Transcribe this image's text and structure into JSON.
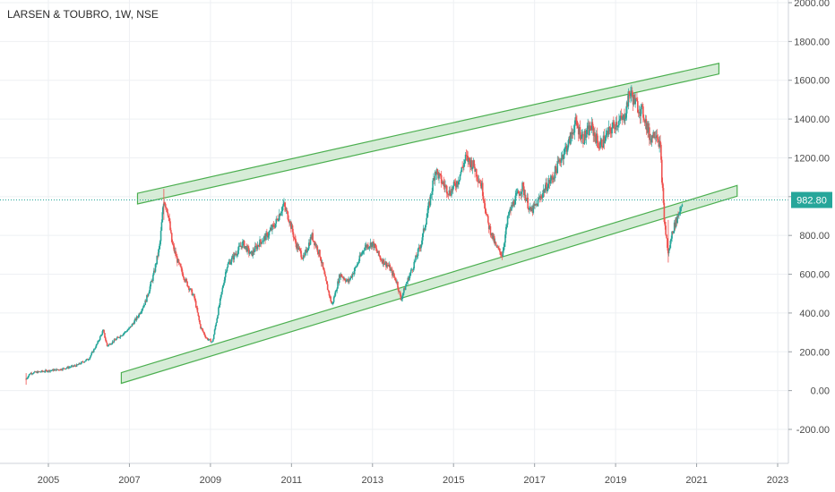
{
  "chart_data": {
    "type": "candlestick",
    "title": "LARSEN & TOUBRO, 1W, NSE",
    "ylim": [
      -400,
      2000
    ],
    "xlim": [
      2004.0,
      2023.3
    ],
    "grid": true,
    "y_ticks": [
      "2000.00",
      "1800.00",
      "1600.00",
      "1400.00",
      "1200.00",
      "1000.00",
      "800.00",
      "600.00",
      "400.00",
      "200.00",
      "0.00",
      "-200.00"
    ],
    "y_tick_values": [
      2000,
      1800,
      1600,
      1400,
      1200,
      1000,
      800,
      600,
      400,
      200,
      0,
      -200
    ],
    "x_ticks": [
      "2005",
      "2007",
      "2009",
      "2011",
      "2013",
      "2015",
      "2017",
      "2019",
      "2021",
      "2023"
    ],
    "x_tick_values": [
      2005,
      2007,
      2009,
      2011,
      2013,
      2015,
      2017,
      2019,
      2021,
      2023
    ],
    "last_price": 982.8,
    "last_price_label": "982.80",
    "colors": {
      "up": "#26a69a",
      "down": "#ef5350",
      "channel_stroke": "#4caf50",
      "channel_fill": "#c8e6c9",
      "price_line": "#26a69a"
    },
    "price_path": [
      [
        2004.45,
        60
      ],
      [
        2004.55,
        90
      ],
      [
        2004.9,
        100
      ],
      [
        2005.3,
        110
      ],
      [
        2005.7,
        130
      ],
      [
        2006.0,
        165
      ],
      [
        2006.2,
        240
      ],
      [
        2006.35,
        310
      ],
      [
        2006.45,
        230
      ],
      [
        2006.7,
        270
      ],
      [
        2007.0,
        320
      ],
      [
        2007.2,
        380
      ],
      [
        2007.4,
        460
      ],
      [
        2007.6,
        600
      ],
      [
        2007.75,
        750
      ],
      [
        2007.85,
        990
      ],
      [
        2007.95,
        920
      ],
      [
        2008.05,
        760
      ],
      [
        2008.2,
        660
      ],
      [
        2008.4,
        560
      ],
      [
        2008.6,
        480
      ],
      [
        2008.75,
        330
      ],
      [
        2008.9,
        270
      ],
      [
        2009.05,
        250
      ],
      [
        2009.2,
        420
      ],
      [
        2009.4,
        640
      ],
      [
        2009.6,
        700
      ],
      [
        2009.8,
        760
      ],
      [
        2010.0,
        700
      ],
      [
        2010.2,
        760
      ],
      [
        2010.4,
        800
      ],
      [
        2010.6,
        860
      ],
      [
        2010.8,
        960
      ],
      [
        2010.95,
        880
      ],
      [
        2011.1,
        760
      ],
      [
        2011.3,
        680
      ],
      [
        2011.5,
        800
      ],
      [
        2011.7,
        700
      ],
      [
        2011.85,
        560
      ],
      [
        2012.0,
        440
      ],
      [
        2012.2,
        600
      ],
      [
        2012.4,
        560
      ],
      [
        2012.6,
        640
      ],
      [
        2012.8,
        740
      ],
      [
        2013.0,
        760
      ],
      [
        2013.2,
        680
      ],
      [
        2013.4,
        640
      ],
      [
        2013.6,
        560
      ],
      [
        2013.7,
        470
      ],
      [
        2013.85,
        560
      ],
      [
        2014.0,
        640
      ],
      [
        2014.2,
        760
      ],
      [
        2014.4,
        960
      ],
      [
        2014.55,
        1140
      ],
      [
        2014.7,
        1080
      ],
      [
        2014.9,
        1020
      ],
      [
        2015.1,
        1080
      ],
      [
        2015.3,
        1200
      ],
      [
        2015.5,
        1160
      ],
      [
        2015.7,
        1050
      ],
      [
        2015.85,
        860
      ],
      [
        2016.05,
        740
      ],
      [
        2016.2,
        700
      ],
      [
        2016.35,
        900
      ],
      [
        2016.5,
        980
      ],
      [
        2016.7,
        1050
      ],
      [
        2016.9,
        920
      ],
      [
        2017.05,
        960
      ],
      [
        2017.25,
        1040
      ],
      [
        2017.45,
        1100
      ],
      [
        2017.65,
        1200
      ],
      [
        2017.85,
        1280
      ],
      [
        2018.0,
        1380
      ],
      [
        2018.2,
        1300
      ],
      [
        2018.4,
        1360
      ],
      [
        2018.6,
        1260
      ],
      [
        2018.8,
        1320
      ],
      [
        2019.0,
        1380
      ],
      [
        2019.2,
        1400
      ],
      [
        2019.35,
        1540
      ],
      [
        2019.5,
        1480
      ],
      [
        2019.7,
        1420
      ],
      [
        2019.85,
        1300
      ],
      [
        2020.0,
        1340
      ],
      [
        2020.1,
        1260
      ],
      [
        2020.2,
        880
      ],
      [
        2020.3,
        700
      ],
      [
        2020.4,
        820
      ],
      [
        2020.5,
        880
      ],
      [
        2020.6,
        940
      ],
      [
        2020.65,
        982.8
      ]
    ],
    "channel": {
      "upper": {
        "start": [
          2007.2,
          990
        ],
        "end": [
          2021.55,
          1660
        ],
        "width": 55
      },
      "lower": {
        "start": [
          2006.8,
          65
        ],
        "end": [
          2022.0,
          1030
        ],
        "width": 55
      }
    }
  }
}
